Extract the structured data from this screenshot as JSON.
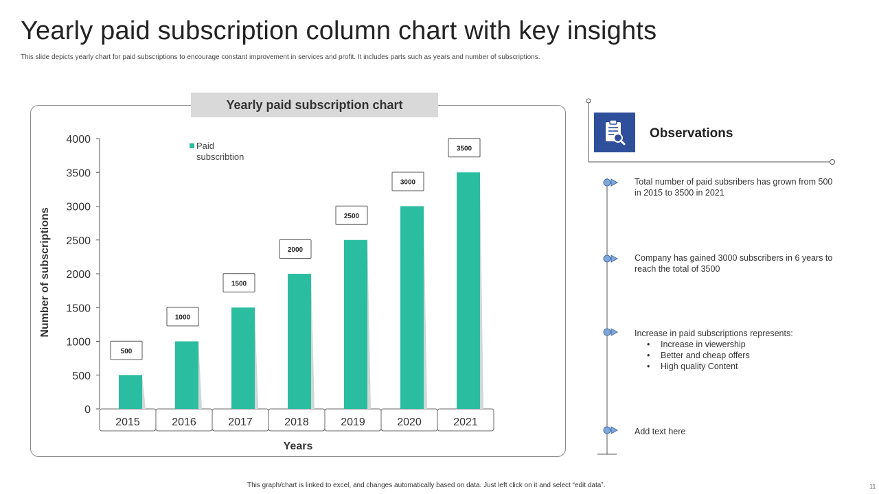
{
  "slide": {
    "title": "Yearly paid subscription column chart with key insights",
    "subtitle": "This slide depicts yearly chart for paid subscriptions to encourage constant improvement in services and profit. It includes parts such as years and number of subscriptions.",
    "footer_note": "This graph/chart is linked to excel, and changes automatically based on data. Just left click on it and select “edit data”.",
    "page_number": "11"
  },
  "chart_header": "Yearly paid subscription chart",
  "chart_data": {
    "type": "bar",
    "categories": [
      "2015",
      "2016",
      "2017",
      "2018",
      "2019",
      "2020",
      "2021"
    ],
    "series": [
      {
        "name": "Paid subscribtion",
        "values": [
          500,
          1000,
          1500,
          2000,
          2500,
          3000,
          3500
        ],
        "color": "#2bbd9f"
      }
    ],
    "data_labels": [
      "500",
      "1000",
      "1500",
      "2000",
      "2500",
      "3000",
      "3500"
    ],
    "xlabel": "Years",
    "ylabel": "Number of subscriptions",
    "ylim": [
      0,
      4000
    ],
    "yticks": [
      0,
      500,
      1000,
      1500,
      2000,
      2500,
      3000,
      3500,
      4000
    ],
    "legend_lines": [
      "Paid",
      "subscribtion"
    ],
    "legend_position": "top-left",
    "grid": false
  },
  "observations": {
    "title": "Observations",
    "icon": "clipboard-search-icon",
    "items": [
      {
        "text": "Total number of paid subsribers has grown from 500 in 2015 to 3500 in 2021",
        "bullets": []
      },
      {
        "text": "Company has gained 3000 subscribers in 6 years to reach the total of 3500",
        "bullets": []
      },
      {
        "text": "Increase in paid subscriptions represents:",
        "bullets": [
          "Increase in viewership",
          "Better and cheap offers",
          "High quality Content"
        ]
      },
      {
        "text": "Add text here",
        "bullets": []
      }
    ]
  },
  "colors": {
    "accent": "#2bbd9f",
    "icon_box": "#2f4f9a",
    "timeline": "#555555",
    "marker": "#7fa7d8"
  }
}
